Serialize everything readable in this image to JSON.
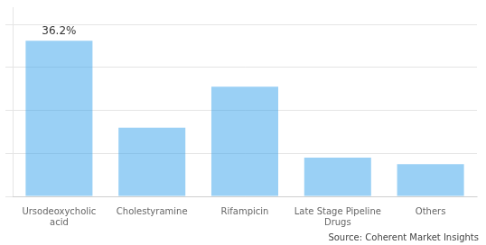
{
  "chart_data": {
    "type": "bar",
    "categories": [
      "Ursodeoxycholic\nacid",
      "Cholestyramine",
      "Rifampicin",
      "Late Stage Pipeline\nDrugs",
      "Others"
    ],
    "values": [
      36.2,
      16.0,
      25.5,
      9.0,
      7.5
    ],
    "ylim": [
      0,
      44
    ],
    "yticks": [
      0,
      10,
      20,
      30,
      40
    ],
    "grid": true,
    "tick_labels": "x",
    "annotations": [
      {
        "text": "36.2%",
        "x": "Ursodeoxycholic\nacid",
        "y": 36.2
      },
      {
        "text": "Source: Coherent Market Insights"
      }
    ]
  }
}
